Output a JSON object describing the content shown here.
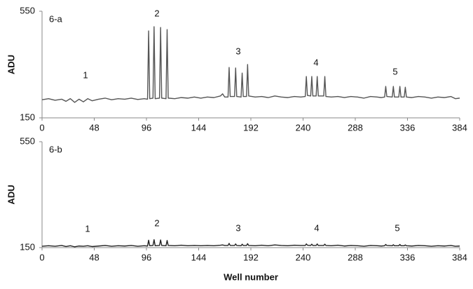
{
  "chart_data": [
    {
      "type": "line",
      "panel_label": "6-a",
      "ylabel": "ADU",
      "annotations": [
        "1",
        "2",
        "3",
        "4",
        "5"
      ],
      "x": [
        0,
        6,
        12,
        18,
        22,
        26,
        30,
        34,
        38,
        42,
        46,
        52,
        58,
        64,
        70,
        76,
        82,
        88,
        94,
        97,
        98,
        99,
        102,
        103,
        104,
        108,
        109,
        110,
        114,
        115,
        116,
        122,
        128,
        134,
        140,
        146,
        152,
        158,
        164,
        166,
        168,
        171,
        172,
        173,
        177,
        178,
        179,
        183,
        184,
        185,
        188,
        189,
        190,
        196,
        202,
        208,
        214,
        220,
        226,
        232,
        238,
        242,
        243,
        244,
        247,
        248,
        249,
        252,
        253,
        254,
        259,
        260,
        261,
        266,
        272,
        278,
        284,
        290,
        296,
        302,
        308,
        312,
        315,
        316,
        317,
        322,
        323,
        324,
        328,
        329,
        330,
        333,
        334,
        335,
        340,
        346,
        352,
        358,
        364,
        370,
        376,
        380,
        384
      ],
      "series": [
        {
          "color": "#555555",
          "values": [
            218,
            222,
            216,
            220,
            212,
            222,
            208,
            220,
            210,
            222,
            214,
            220,
            224,
            218,
            222,
            220,
            224,
            219,
            222,
            220,
            476,
            222,
            224,
            492,
            222,
            224,
            489,
            224,
            222,
            481,
            224,
            222,
            226,
            224,
            228,
            224,
            228,
            226,
            232,
            240,
            228,
            228,
            339,
            230,
            230,
            337,
            230,
            228,
            318,
            230,
            230,
            350,
            232,
            228,
            230,
            226,
            232,
            228,
            226,
            230,
            228,
            230,
            305,
            234,
            232,
            305,
            232,
            232,
            305,
            232,
            232,
            305,
            230,
            228,
            230,
            226,
            230,
            228,
            224,
            230,
            228,
            226,
            228,
            268,
            230,
            228,
            268,
            228,
            228,
            268,
            228,
            228,
            265,
            228,
            226,
            230,
            228,
            224,
            228,
            226,
            230,
            222,
            224
          ]
        }
      ],
      "xlim": [
        0,
        384
      ],
      "xticks": [
        0,
        48,
        96,
        144,
        192,
        240,
        288,
        336,
        384
      ],
      "ylim": [
        150,
        550
      ],
      "yticks": [
        150,
        550
      ]
    },
    {
      "type": "line",
      "panel_label": "6-b",
      "ylabel": "ADU",
      "xlabel": "Well number",
      "annotations": [
        "1",
        "2",
        "3",
        "4",
        "5"
      ],
      "x": [
        0,
        6,
        12,
        18,
        22,
        26,
        30,
        34,
        38,
        42,
        46,
        52,
        58,
        64,
        70,
        76,
        82,
        88,
        94,
        97,
        98,
        99,
        102,
        103,
        104,
        108,
        109,
        110,
        114,
        115,
        116,
        122,
        128,
        134,
        140,
        146,
        152,
        158,
        164,
        166,
        168,
        171,
        172,
        173,
        177,
        178,
        179,
        183,
        184,
        185,
        188,
        189,
        190,
        196,
        202,
        208,
        214,
        220,
        226,
        232,
        238,
        242,
        243,
        244,
        247,
        248,
        249,
        252,
        253,
        254,
        259,
        260,
        261,
        266,
        272,
        278,
        284,
        290,
        296,
        302,
        308,
        312,
        315,
        316,
        317,
        322,
        323,
        324,
        328,
        329,
        330,
        333,
        334,
        335,
        340,
        346,
        352,
        358,
        364,
        370,
        376,
        380,
        384
      ],
      "series": [
        {
          "color": "#222222",
          "values": [
            155,
            157,
            155,
            158,
            154,
            157,
            153,
            156,
            155,
            157,
            154,
            156,
            158,
            155,
            157,
            156,
            158,
            155,
            157,
            156,
            178,
            157,
            158,
            180,
            157,
            158,
            179,
            158,
            157,
            177,
            158,
            157,
            159,
            157,
            158,
            157,
            158,
            157,
            159,
            160,
            158,
            158,
            166,
            158,
            158,
            164,
            158,
            157,
            163,
            158,
            158,
            165,
            158,
            157,
            159,
            157,
            160,
            158,
            157,
            159,
            158,
            158,
            164,
            159,
            158,
            163,
            158,
            158,
            164,
            158,
            158,
            163,
            158,
            157,
            159,
            156,
            158,
            157,
            155,
            158,
            157,
            156,
            157,
            162,
            158,
            157,
            161,
            157,
            157,
            162,
            157,
            157,
            160,
            157,
            156,
            158,
            157,
            155,
            157,
            156,
            158,
            155,
            156
          ]
        }
      ],
      "xlim": [
        0,
        384
      ],
      "xticks": [
        0,
        48,
        96,
        144,
        192,
        240,
        288,
        336,
        384
      ],
      "ylim": [
        150,
        550
      ],
      "yticks": [
        150,
        550
      ]
    }
  ]
}
